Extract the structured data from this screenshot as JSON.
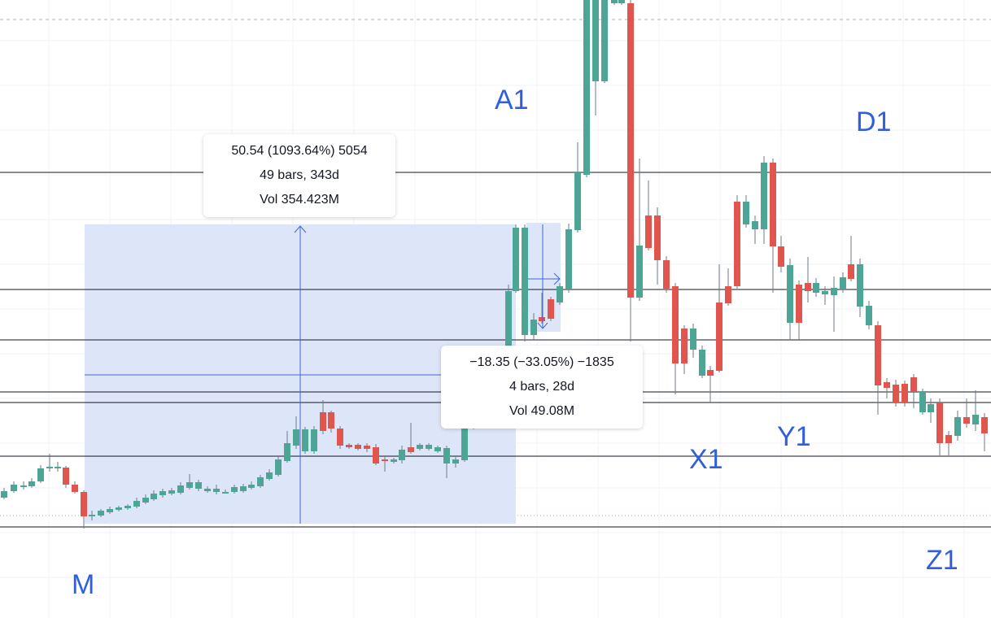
{
  "chart_data": {
    "type": "candlestick",
    "colors": {
      "up": "#4da596",
      "down": "#e0564f",
      "range_fill": "#dde5f8",
      "measure_line": "#4068d8",
      "label": "#2f5fe0",
      "hline": "#131722"
    },
    "price_range": {
      "pixel_top_price": "",
      "note": ""
    },
    "candles": [
      {
        "o": 0.0,
        "h": 0.0,
        "l": 0.0,
        "c": 0.0
      }
    ],
    "wave_labels": [
      "M",
      "A1",
      "D1",
      "X1",
      "Y1",
      "Z1"
    ],
    "measure_up": {
      "line1": "50.54 (1093.64%) 5054",
      "line2": "49 bars, 343d",
      "line3": "Vol 354.423M"
    },
    "measure_down": {
      "line1": "−18.35 (−33.05%) −1835",
      "line2": "4 bars, 28d",
      "line3": "Vol 49.08M"
    }
  }
}
